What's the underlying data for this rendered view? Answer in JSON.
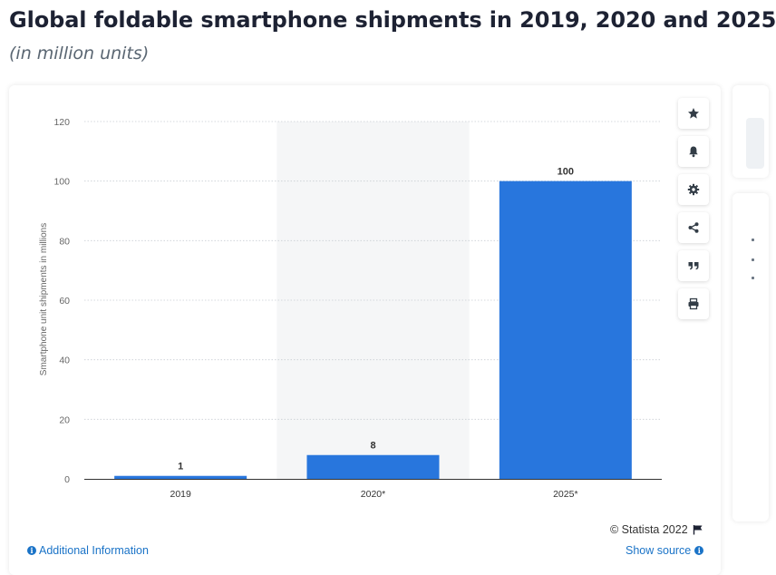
{
  "header": {
    "title": "Global foldable smartphone shipments in 2019, 2020 and 2025",
    "subtitle": "(in million units)"
  },
  "toolbar": {
    "buttons": [
      {
        "name": "favorite-button",
        "icon": "star-icon"
      },
      {
        "name": "notification-button",
        "icon": "bell-icon"
      },
      {
        "name": "settings-button",
        "icon": "gear-icon"
      },
      {
        "name": "share-button",
        "icon": "share-icon"
      },
      {
        "name": "cite-button",
        "icon": "quote-icon"
      },
      {
        "name": "print-button",
        "icon": "printer-icon"
      }
    ]
  },
  "footer": {
    "credit": "© Statista 2022",
    "additional_info": "Additional Information",
    "show_source": "Show source"
  },
  "colors": {
    "bar": "#2876dd",
    "highlight_band": "#f5f6f7",
    "title": "#1d2233",
    "link": "#1a73c7"
  },
  "chart_data": {
    "type": "bar",
    "categories": [
      "2019",
      "2020*",
      "2025*"
    ],
    "values": [
      1,
      8,
      100
    ],
    "data_labels": [
      "1",
      "8",
      "100"
    ],
    "ylabel": "Smartphone unit shipments in millions",
    "xlabel": "",
    "ylim": [
      0,
      120
    ],
    "yticks": [
      "0",
      "20",
      "40",
      "60",
      "80",
      "100",
      "120"
    ],
    "grid": "horizontal dotted",
    "highlighted_category": "2020*"
  }
}
